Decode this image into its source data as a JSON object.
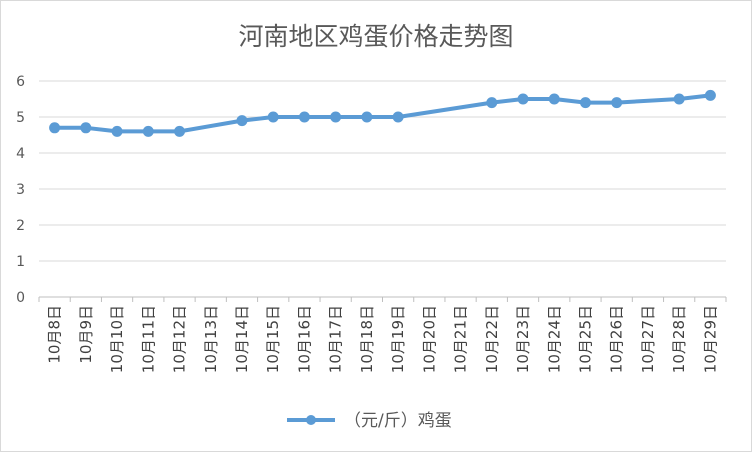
{
  "chart_data": {
    "type": "line",
    "title": "河南地区鸡蛋价格走势图",
    "xlabel": "",
    "ylabel": "",
    "ylim": [
      0,
      6
    ],
    "yticks": [
      0,
      1,
      2,
      3,
      4,
      5,
      6
    ],
    "grid": true,
    "legend_position": "bottom",
    "categories": [
      "10月8日",
      "10月9日",
      "10月10日",
      "10月11日",
      "10月12日",
      "10月13日",
      "10月14日",
      "10月15日",
      "10月16日",
      "10月17日",
      "10月18日",
      "10月19日",
      "10月20日",
      "10月21日",
      "10月22日",
      "10月23日",
      "10月24日",
      "10月25日",
      "10月26日",
      "10月27日",
      "10月28日",
      "10月29日"
    ],
    "series": [
      {
        "name": "（元/斤）鸡蛋",
        "color": "#5b9bd5",
        "values": [
          4.7,
          4.7,
          4.6,
          4.6,
          4.6,
          null,
          4.9,
          5.0,
          5.0,
          5.0,
          5.0,
          5.0,
          null,
          null,
          5.4,
          5.5,
          5.5,
          5.4,
          5.4,
          null,
          5.5,
          5.6
        ]
      }
    ]
  }
}
